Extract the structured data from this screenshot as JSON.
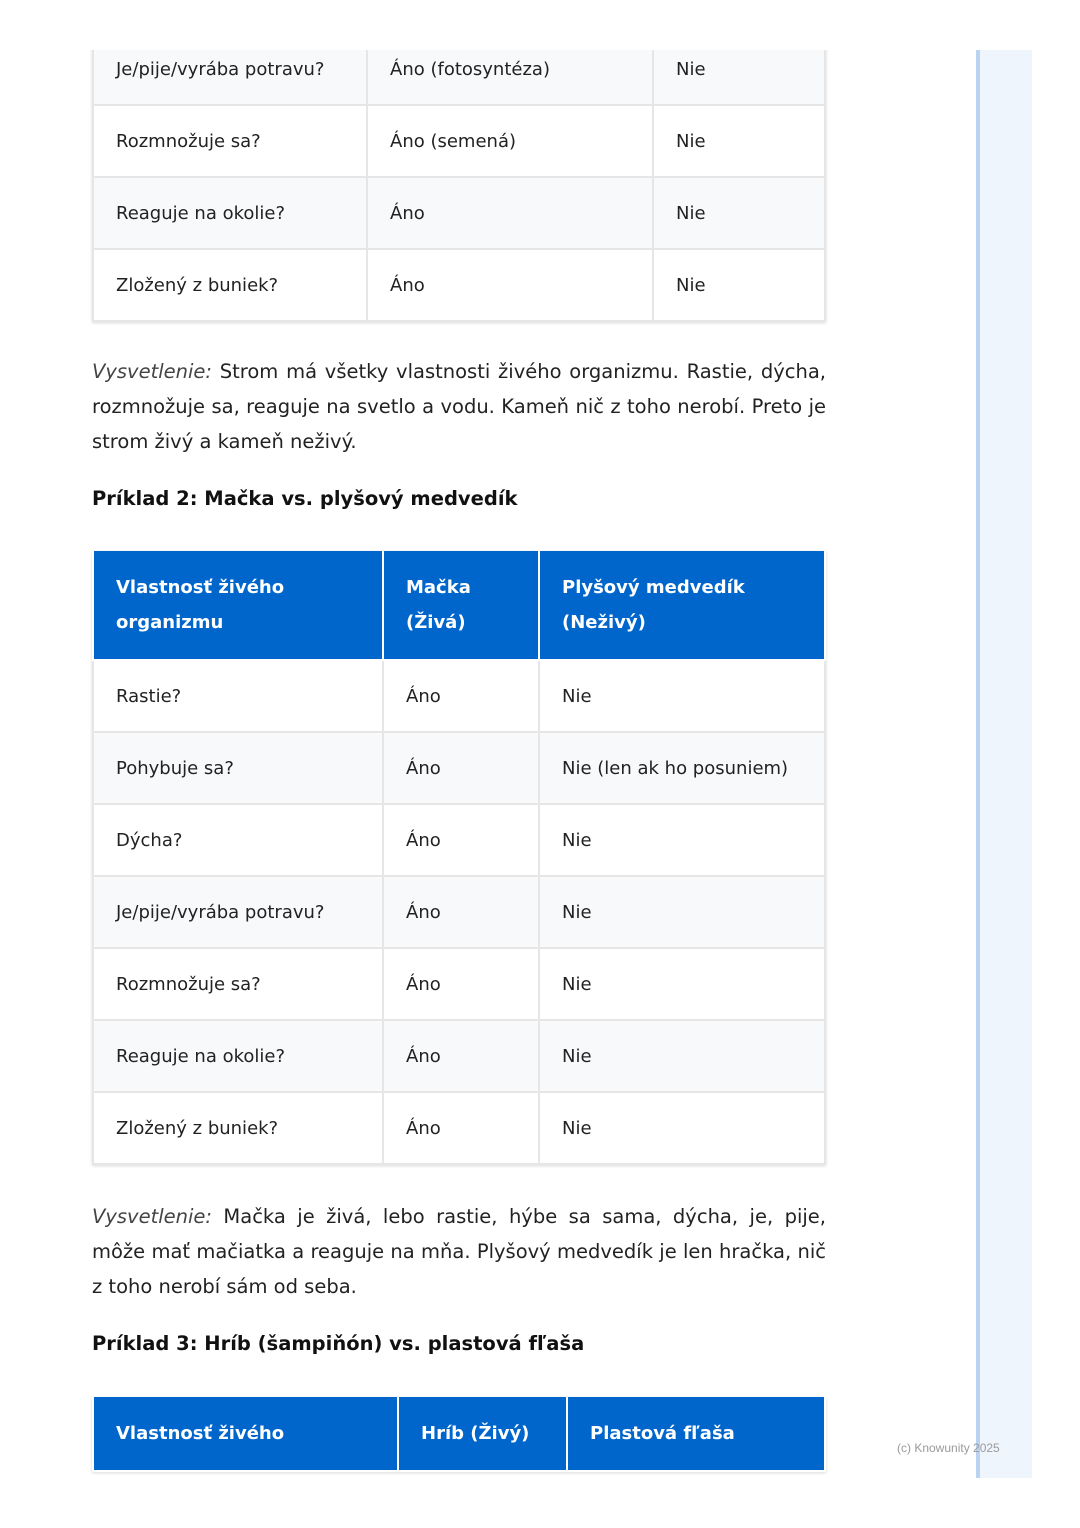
{
  "table1": {
    "rows": [
      [
        "Je/pije/vyrába potravu?",
        "Áno (fotosyntéza)",
        "Nie"
      ],
      [
        "Rozmnožuje sa?",
        "Áno (semená)",
        "Nie"
      ],
      [
        "Reaguje na okolie?",
        "Áno",
        "Nie"
      ],
      [
        "Zložený z buniek?",
        "Áno",
        "Nie"
      ]
    ]
  },
  "explain1": {
    "label": "Vysvetlenie:",
    "text": " Strom má všetky vlastnosti živého organizmu. Rastie, dýcha, rozmnožuje sa, reaguje na svetlo a vodu. Kameň nič z toho nerobí. Preto je strom živý a kameň neživý."
  },
  "heading2": "Príklad 2: Mačka vs. plyšový medvedík",
  "table2": {
    "headers": [
      "Vlastnosť živého organizmu",
      "Mačka (Živá)",
      "Plyšový medvedík (Neživý)"
    ],
    "rows": [
      [
        "Rastie?",
        "Áno",
        "Nie"
      ],
      [
        "Pohybuje sa?",
        "Áno",
        "Nie (len ak ho posuniem)"
      ],
      [
        "Dýcha?",
        "Áno",
        "Nie"
      ],
      [
        "Je/pije/vyrába potravu?",
        "Áno",
        "Nie"
      ],
      [
        "Rozmnožuje sa?",
        "Áno",
        "Nie"
      ],
      [
        "Reaguje na okolie?",
        "Áno",
        "Nie"
      ],
      [
        "Zložený z buniek?",
        "Áno",
        "Nie"
      ]
    ]
  },
  "explain2": {
    "label": "Vysvetlenie:",
    "text": " Mačka je živá, lebo rastie, hýbe sa sama, dýcha, je, pije, môže mať mačiatka a reaguje na mňa. Plyšový medvedík je len hračka, nič z toho nerobí sám od seba."
  },
  "heading3": "Príklad 3: Hríb (šampiňón) vs. plastová fľaša",
  "table3": {
    "headers": [
      "Vlastnosť živého",
      "Hríb (Živý)",
      "Plastová fľaša"
    ]
  },
  "footer": "(c) Knowunity 2025",
  "colors": {
    "header": "#0066cc",
    "sidebar": "#eef5fd"
  }
}
